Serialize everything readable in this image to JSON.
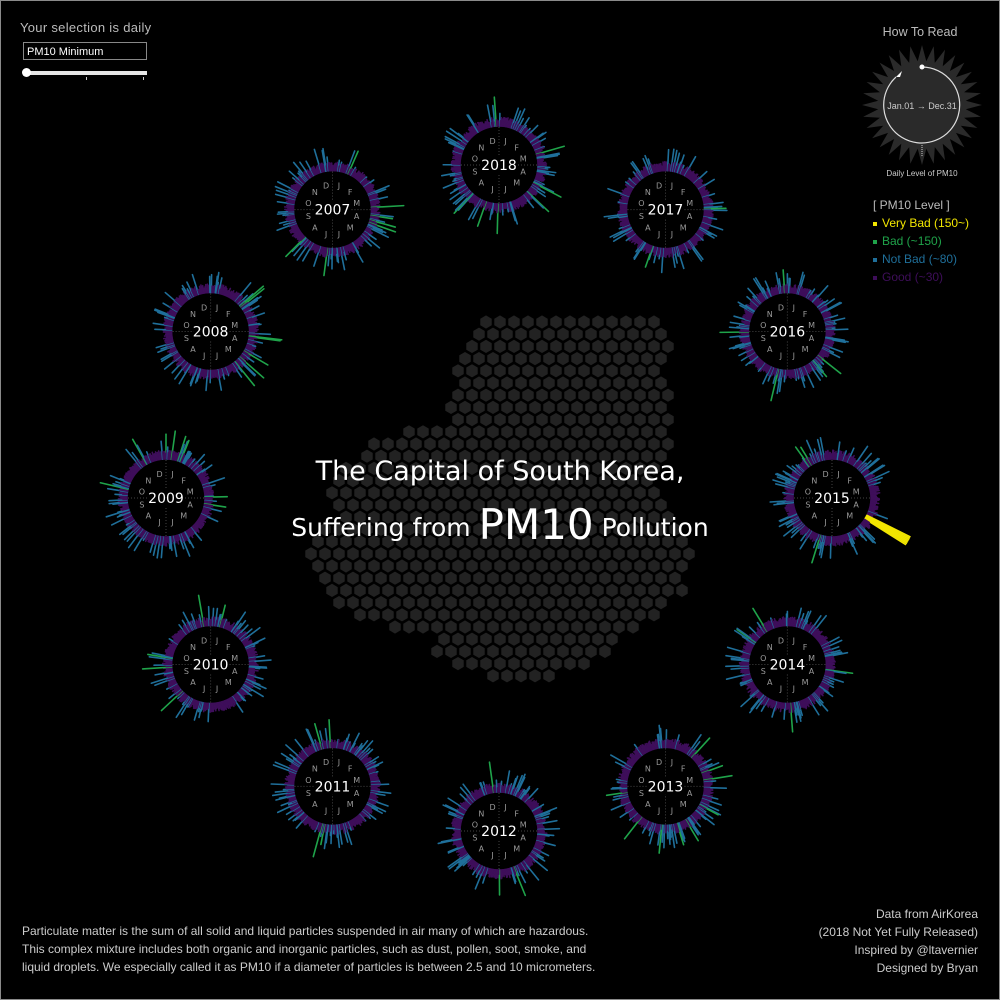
{
  "controls": {
    "selection_label": "Your selection is daily",
    "measure_value": "PM10 Minimum",
    "slider_position": 0
  },
  "how_to_read": {
    "title": "How To Read",
    "direction": "Jan.01 → Dec.31",
    "axis_label": "Daily Level of PM10"
  },
  "legend": {
    "title": "[ PM10 Level ]",
    "items": [
      {
        "label": "Very Bad (150~)",
        "color": "#f2e600"
      },
      {
        "label": "Bad (~150)",
        "color": "#1fa34a"
      },
      {
        "label": "Not Bad (~80)",
        "color": "#1f6f9a"
      },
      {
        "label": "Good (~30)",
        "color": "#3e0e5a"
      }
    ]
  },
  "title": {
    "line1": "The Capital of South Korea,",
    "line2_pre": "Suffering from",
    "line2_big": "PM10",
    "line2_post": "Pollution"
  },
  "description": [
    "Particulate matter is the sum of all solid and liquid particles suspended in air many of which are hazardous.",
    "This complex mixture includes both organic and inorganic particles, such as dust, pollen, soot, smoke, and",
    "liquid droplets. We especially called it as PM10 if a diameter of particles is between 2.5 and 10 micrometers."
  ],
  "credits": [
    "Data from AirKorea",
    "(2018 Not Yet Fully Released)",
    "Inspired by @ltavernier",
    "Designed by Bryan"
  ],
  "chart_data": {
    "type": "radial",
    "years": [
      "2018",
      "2017",
      "2016",
      "2015",
      "2014",
      "2013",
      "2012",
      "2011",
      "2010",
      "2009",
      "2008",
      "2007"
    ],
    "months": [
      "J",
      "F",
      "M",
      "A",
      "M",
      "J",
      "J",
      "A",
      "S",
      "O",
      "N",
      "D"
    ],
    "notable_peaks": [
      {
        "year": "2015",
        "level": "Very Bad (150~)"
      }
    ]
  }
}
